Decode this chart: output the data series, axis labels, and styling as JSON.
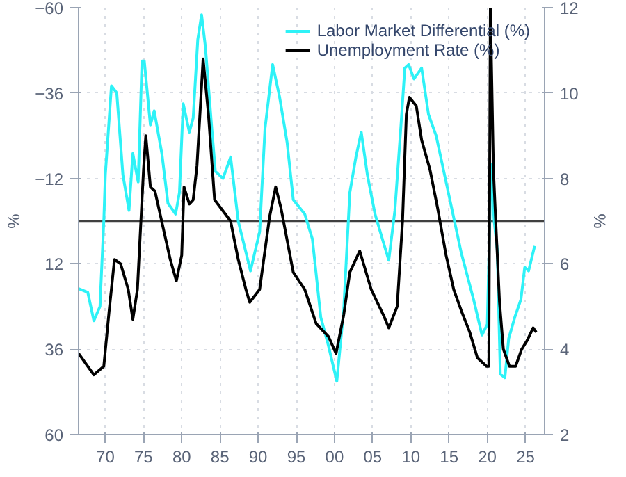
{
  "chart_data": {
    "type": "line",
    "ylabel": "%",
    "y2label": "%",
    "xlim": [
      1966.5,
      2027.5
    ],
    "xticks": [
      {
        "value": 1970,
        "label": "70"
      },
      {
        "value": 1975,
        "label": "75"
      },
      {
        "value": 1980,
        "label": "80"
      },
      {
        "value": 1985,
        "label": "85"
      },
      {
        "value": 1990,
        "label": "90"
      },
      {
        "value": 1995,
        "label": "95"
      },
      {
        "value": 2000,
        "label": "00"
      },
      {
        "value": 2005,
        "label": "05"
      },
      {
        "value": 2010,
        "label": "10"
      },
      {
        "value": 2015,
        "label": "15"
      },
      {
        "value": 2020,
        "label": "20"
      },
      {
        "value": 2025,
        "label": "25"
      }
    ],
    "ylim": [
      60,
      -60
    ],
    "yticks": [
      -60,
      -36,
      -12,
      12,
      36,
      60
    ],
    "y2lim": [
      2,
      12
    ],
    "y2ticks": [
      2,
      4,
      6,
      8,
      10,
      12
    ],
    "grid": true,
    "legend": "top right",
    "marker": "none",
    "line_style": "solid",
    "ref_lines": [
      {
        "axis": "y",
        "value": 0,
        "color": "#404040"
      }
    ],
    "series": [
      {
        "name": "Labor Market Differential (%)",
        "color": "#2ef2f7",
        "x": [
          1966.5,
          1967.7,
          1968.5,
          1969.3,
          1969.8,
          1970.0,
          1970.8,
          1971.5,
          1972.3,
          1973.1,
          1973.6,
          1974.3,
          1974.8,
          1975.1,
          1975.9,
          1976.4,
          1977.4,
          1978.2,
          1979.2,
          1979.7,
          1980.2,
          1981.0,
          1981.5,
          1982.1,
          1982.6,
          1983.1,
          1983.9,
          1984.4,
          1985.4,
          1986.4,
          1987.4,
          1988.2,
          1989.0,
          1990.2,
          1990.9,
          1991.9,
          1992.8,
          1993.8,
          1994.6,
          1996.1,
          1997.1,
          1998.2,
          1999.2,
          2000.3,
          2001.2,
          2002.0,
          2002.8,
          2003.5,
          2004.3,
          2005.3,
          2006.4,
          2007.1,
          2007.9,
          2008.7,
          2009.2,
          2009.7,
          2010.4,
          2011.4,
          2012.3,
          2013.3,
          2014.3,
          2015.4,
          2016.6,
          2018.2,
          2019.3,
          2020.0,
          2020.5,
          2020.9,
          2021.3,
          2021.7,
          2022.3,
          2022.8,
          2023.6,
          2024.4,
          2024.9,
          2025.4,
          2026.2
        ],
        "values": [
          19,
          20,
          28,
          24,
          0,
          -13,
          -38,
          -36,
          -13,
          -3,
          -19,
          -11,
          -45,
          -45,
          -27,
          -31,
          -19,
          -5,
          -2,
          -8,
          -33,
          -25,
          -29,
          -51,
          -58,
          -49,
          -27,
          -14,
          -12,
          -18,
          0,
          7,
          14,
          3,
          -26,
          -44,
          -35,
          -22,
          -6,
          -2,
          5,
          27,
          35,
          45,
          25,
          -8,
          -18,
          -25,
          -13,
          -2,
          6,
          11,
          -3,
          -27,
          -43,
          -44,
          -40,
          -43,
          -30,
          -24,
          -14,
          -3,
          9,
          22,
          32,
          29,
          -16,
          0,
          8,
          43,
          44,
          33,
          27,
          22,
          13,
          14,
          7
        ]
      },
      {
        "name": "Unemployment Rate (%)",
        "color": "#000000",
        "axis": "y2",
        "x": [
          1966.5,
          1968.5,
          1969.8,
          1970.5,
          1971.2,
          1972.0,
          1973.0,
          1973.6,
          1974.2,
          1975.0,
          1975.3,
          1975.9,
          1976.5,
          1977.5,
          1978.5,
          1979.3,
          1980.0,
          1980.3,
          1981.0,
          1981.5,
          1982.0,
          1982.8,
          1983.5,
          1984.3,
          1986.4,
          1987.4,
          1988.4,
          1988.9,
          1990.2,
          1991.5,
          1992.3,
          1993.0,
          1994.6,
          1996.1,
          1997.6,
          1999.2,
          2000.2,
          2001.2,
          2002.0,
          2003.3,
          2004.8,
          2006.4,
          2007.1,
          2008.2,
          2008.9,
          2009.4,
          2009.8,
          2010.7,
          2011.4,
          2012.5,
          2013.5,
          2014.6,
          2015.6,
          2016.6,
          2017.7,
          2018.7,
          2019.9,
          2020.2,
          2020.4,
          2020.8,
          2021.1,
          2021.6,
          2022.1,
          2022.9,
          2023.7,
          2024.5,
          2025.2,
          2026.0,
          2026.4
        ],
        "values": [
          3.9,
          3.4,
          3.6,
          4.9,
          6.1,
          6.0,
          5.4,
          4.7,
          5.4,
          8.2,
          9.0,
          7.8,
          7.7,
          6.9,
          6.1,
          5.6,
          6.2,
          7.8,
          7.4,
          7.5,
          8.3,
          10.8,
          9.5,
          7.5,
          7.0,
          6.1,
          5.4,
          5.1,
          5.4,
          7.1,
          7.8,
          7.3,
          5.8,
          5.4,
          4.6,
          4.3,
          3.9,
          4.8,
          5.8,
          6.3,
          5.4,
          4.8,
          4.5,
          5.0,
          7.0,
          9.5,
          9.9,
          9.7,
          8.9,
          8.2,
          7.3,
          6.2,
          5.4,
          4.9,
          4.4,
          3.8,
          3.6,
          3.6,
          12,
          8.2,
          7.0,
          5.1,
          4.0,
          3.6,
          3.6,
          4.0,
          4.2,
          4.5,
          4.4
        ]
      }
    ]
  }
}
